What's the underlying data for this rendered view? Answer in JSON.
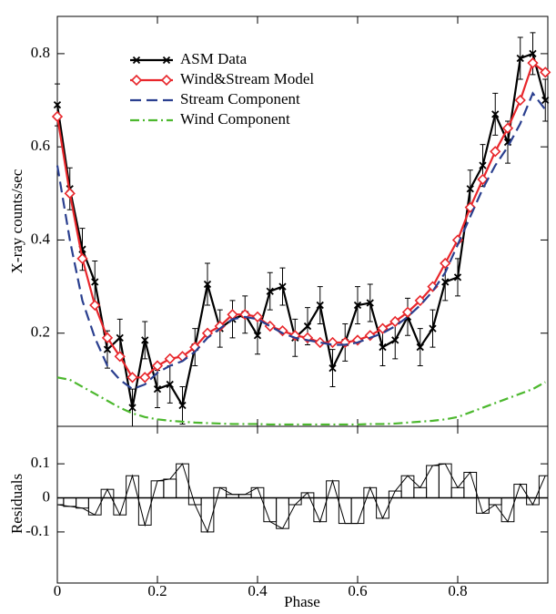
{
  "chart_data": [
    {
      "type": "line",
      "ylabel": "X-ray counts/sec",
      "x": [
        0,
        0.025,
        0.05,
        0.075,
        0.1,
        0.125,
        0.15,
        0.175,
        0.2,
        0.225,
        0.25,
        0.275,
        0.3,
        0.325,
        0.35,
        0.375,
        0.4,
        0.425,
        0.45,
        0.475,
        0.5,
        0.525,
        0.55,
        0.575,
        0.6,
        0.625,
        0.65,
        0.675,
        0.7,
        0.725,
        0.75,
        0.775,
        0.8,
        0.825,
        0.85,
        0.875,
        0.9,
        0.925,
        0.95,
        0.975
      ],
      "xlim": [
        0,
        0.98
      ],
      "xticks": [
        0,
        0.2,
        0.4,
        0.6,
        0.8
      ],
      "ylim": [
        0,
        0.88
      ],
      "yticks": [
        0.2,
        0.4,
        0.6,
        0.8
      ],
      "legend": "upper left",
      "series": [
        {
          "name": "ASM Data",
          "color": "#000000",
          "marker": "x",
          "dash": "solid",
          "values": [
            0.69,
            0.51,
            0.38,
            0.31,
            0.165,
            0.19,
            0.04,
            0.185,
            0.08,
            0.09,
            0.045,
            0.17,
            0.305,
            0.21,
            0.23,
            0.24,
            0.195,
            0.29,
            0.3,
            0.19,
            0.215,
            0.26,
            0.125,
            0.18,
            0.26,
            0.265,
            0.17,
            0.185,
            0.235,
            0.17,
            0.21,
            0.31,
            0.32,
            0.51,
            0.56,
            0.67,
            0.61,
            0.79,
            0.8,
            0.7
          ],
          "errors": [
            0.045,
            0.045,
            0.045,
            0.045,
            0.04,
            0.04,
            0.04,
            0.04,
            0.04,
            0.04,
            0.04,
            0.04,
            0.045,
            0.04,
            0.04,
            0.04,
            0.04,
            0.04,
            0.04,
            0.04,
            0.04,
            0.04,
            0.04,
            0.04,
            0.04,
            0.04,
            0.04,
            0.04,
            0.04,
            0.04,
            0.04,
            0.04,
            0.04,
            0.04,
            0.045,
            0.045,
            0.045,
            0.045,
            0.045,
            0.045
          ]
        },
        {
          "name": "Wind&Stream Model",
          "color": "#e8262b",
          "marker": "diamond",
          "dash": "solid",
          "values": [
            0.665,
            0.5,
            0.36,
            0.26,
            0.19,
            0.15,
            0.105,
            0.105,
            0.13,
            0.145,
            0.15,
            0.17,
            0.2,
            0.215,
            0.24,
            0.24,
            0.235,
            0.215,
            0.205,
            0.195,
            0.19,
            0.18,
            0.18,
            0.18,
            0.185,
            0.195,
            0.21,
            0.225,
            0.245,
            0.27,
            0.3,
            0.35,
            0.4,
            0.47,
            0.53,
            0.59,
            0.64,
            0.7,
            0.78,
            0.76
          ]
        },
        {
          "name": "Stream Component",
          "color": "#2a3f8f",
          "marker": "none",
          "dash": "dashed",
          "values": [
            0.56,
            0.4,
            0.27,
            0.19,
            0.13,
            0.1,
            0.08,
            0.09,
            0.115,
            0.13,
            0.14,
            0.16,
            0.19,
            0.21,
            0.23,
            0.235,
            0.23,
            0.215,
            0.2,
            0.19,
            0.185,
            0.18,
            0.175,
            0.175,
            0.18,
            0.19,
            0.2,
            0.215,
            0.235,
            0.26,
            0.29,
            0.33,
            0.39,
            0.45,
            0.51,
            0.56,
            0.6,
            0.65,
            0.715,
            0.68
          ]
        },
        {
          "name": "Wind Component",
          "color": "#4cb82e",
          "marker": "none",
          "dash": "dashdot",
          "values": [
            0.105,
            0.1,
            0.085,
            0.07,
            0.055,
            0.04,
            0.028,
            0.02,
            0.015,
            0.012,
            0.01,
            0.008,
            0.007,
            0.006,
            0.005,
            0.005,
            0.005,
            0.004,
            0.004,
            0.004,
            0.004,
            0.004,
            0.004,
            0.004,
            0.004,
            0.005,
            0.005,
            0.006,
            0.008,
            0.01,
            0.012,
            0.015,
            0.02,
            0.03,
            0.04,
            0.05,
            0.06,
            0.07,
            0.08,
            0.095
          ]
        }
      ]
    },
    {
      "type": "residual",
      "xlabel": "Phase",
      "ylabel": "Residuals",
      "x": [
        0,
        0.025,
        0.05,
        0.075,
        0.1,
        0.125,
        0.15,
        0.175,
        0.2,
        0.225,
        0.25,
        0.275,
        0.3,
        0.325,
        0.35,
        0.375,
        0.4,
        0.425,
        0.45,
        0.475,
        0.5,
        0.525,
        0.55,
        0.575,
        0.6,
        0.625,
        0.65,
        0.675,
        0.7,
        0.725,
        0.75,
        0.775,
        0.8,
        0.825,
        0.85,
        0.875,
        0.9,
        0.925,
        0.95,
        0.975
      ],
      "xlim": [
        0,
        0.98
      ],
      "xticks": [
        0,
        0.2,
        0.4,
        0.6,
        0.8
      ],
      "ylim": [
        -0.25,
        0.21
      ],
      "yticks": [
        -0.1,
        0,
        0.1
      ],
      "zero_line": true,
      "color": "#000000",
      "values": [
        -0.02,
        -0.025,
        -0.03,
        -0.05,
        0.025,
        -0.05,
        0.065,
        -0.08,
        0.05,
        0.055,
        0.1,
        -0.02,
        -0.1,
        0.03,
        0.01,
        0.01,
        0.03,
        -0.07,
        -0.09,
        -0.02,
        0.015,
        -0.07,
        0.05,
        -0.075,
        -0.075,
        0.03,
        -0.06,
        0.02,
        0.065,
        0.03,
        0.095,
        0.1,
        0.03,
        0.075,
        -0.045,
        -0.02,
        -0.07,
        0.04,
        -0.02,
        0.065
      ]
    }
  ]
}
